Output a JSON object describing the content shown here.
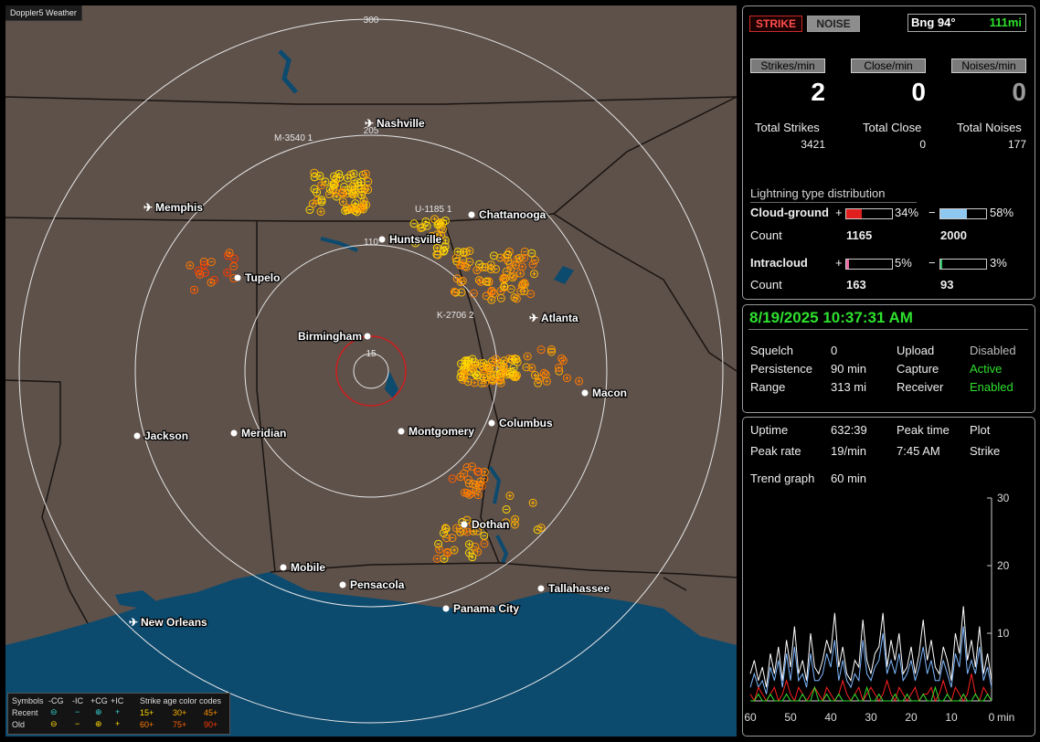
{
  "app_title": "Doppler5 Weather",
  "map": {
    "range_labels": [
      "300",
      "205",
      "110",
      "15"
    ],
    "cities": [
      {
        "name": "Nashville",
        "icon": "airport"
      },
      {
        "name": "Memphis",
        "icon": "airport"
      },
      {
        "name": "Chattanooga",
        "icon": "dot"
      },
      {
        "name": "Huntsville",
        "icon": "dot"
      },
      {
        "name": "Tupelo",
        "icon": "dot"
      },
      {
        "name": "Atlanta",
        "icon": "airport"
      },
      {
        "name": "Birmingham",
        "icon": "dot"
      },
      {
        "name": "Macon",
        "icon": "dot"
      },
      {
        "name": "Jackson",
        "icon": "dot"
      },
      {
        "name": "Meridian",
        "icon": "dot"
      },
      {
        "name": "Montgomery",
        "icon": "dot"
      },
      {
        "name": "Columbus",
        "icon": "dot"
      },
      {
        "name": "Dothan",
        "icon": "dot"
      },
      {
        "name": "Mobile",
        "icon": "dot"
      },
      {
        "name": "Pensacola",
        "icon": "dot"
      },
      {
        "name": "Tallahassee",
        "icon": "dot"
      },
      {
        "name": "Panama City",
        "icon": "dot"
      },
      {
        "name": "New Orleans",
        "icon": "airport"
      }
    ],
    "storm_tags": [
      "M-3540 1",
      "U-1185 1",
      "K-2706 2"
    ],
    "colors": {
      "land": "#5e514a",
      "water": "#0c4a6e",
      "ring": "#e6e6e6",
      "center_ring": "#d11b1b"
    }
  },
  "legend": {
    "symbols_label": "Symbols",
    "headers": [
      "-CG",
      "-IC",
      "+CG",
      "+IC"
    ],
    "age_title": "Strike age color codes",
    "rows": [
      {
        "label": "Recent",
        "ages": [
          "15+",
          "30+",
          "45+"
        ]
      },
      {
        "label": "Old",
        "ages": [
          "60+",
          "75+",
          "90+"
        ]
      }
    ],
    "age_colors": [
      "#ffd700",
      "#ffb000",
      "#ff9000",
      "#ff7a00",
      "#ff5e00",
      "#ff3a00"
    ]
  },
  "header": {
    "strike_btn": "STRIKE",
    "noise_btn": "NOISE",
    "bearing": "Bng 94°",
    "distance": "111mi"
  },
  "rates": {
    "strikes_label": "Strikes/min",
    "strikes": "2",
    "close_label": "Close/min",
    "close": "0",
    "noises_label": "Noises/min",
    "noises": "0"
  },
  "totals": {
    "strikes_label": "Total Strikes",
    "strikes": "3421",
    "close_label": "Total Close",
    "close": "0",
    "noises_label": "Total Noises",
    "noises": "177"
  },
  "distribution": {
    "title": "Lightning type distribution",
    "cg_label": "Cloud-ground",
    "ic_label": "Intracloud",
    "count_label": "Count",
    "plus": "+",
    "minus": "−",
    "cg_plus_pct": "34%",
    "cg_plus_fraction": 0.34,
    "cg_plus_count": "1165",
    "cg_minus_pct": "58%",
    "cg_minus_fraction": 0.58,
    "cg_minus_count": "2000",
    "ic_plus_pct": "5%",
    "ic_plus_fraction": 0.05,
    "ic_plus_count": "163",
    "ic_minus_pct": "3%",
    "ic_minus_fraction": 0.03,
    "ic_minus_count": "93",
    "colors": {
      "cg_plus": "#e0201e",
      "cg_minus": "#8ec8f0",
      "ic_plus": "#e86aa0",
      "ic_minus": "#2ebf6a"
    }
  },
  "status": {
    "datetime": "8/19/2025 10:37:31 AM",
    "squelch_label": "Squelch",
    "squelch": "0",
    "persistence_label": "Persistence",
    "persistence": "90 min",
    "range_label": "Range",
    "range": "313 mi",
    "upload_label": "Upload",
    "upload": "Disabled",
    "capture_label": "Capture",
    "capture": "Active",
    "receiver_label": "Receiver",
    "receiver": "Enabled"
  },
  "stats": {
    "uptime_label": "Uptime",
    "uptime": "632:39",
    "peak_time_label": "Peak time",
    "peak_time": "7:45 AM",
    "plot_label": "Plot",
    "plot": "Strike",
    "peak_rate_label": "Peak rate",
    "peak_rate": "19/min",
    "trend_label": "Trend graph",
    "trend": "60 min"
  },
  "chart_data": {
    "type": "line",
    "xlabel": "min",
    "x_ticks": [
      60,
      50,
      40,
      30,
      20,
      10,
      0
    ],
    "y_ticks": [
      10,
      20,
      30
    ],
    "ylim": [
      0,
      30
    ],
    "xlim": [
      60,
      0
    ],
    "series": [
      {
        "color": "#ffffff",
        "values": [
          4,
          6,
          3,
          5,
          2,
          7,
          4,
          8,
          3,
          9,
          5,
          11,
          4,
          6,
          3,
          10,
          5,
          4,
          6,
          9,
          7,
          13,
          5,
          8,
          4,
          3,
          6,
          5,
          12,
          6,
          4,
          7,
          8,
          13,
          5,
          9,
          6,
          10,
          4,
          5,
          8,
          4,
          7,
          12,
          6,
          9,
          5,
          4,
          8,
          6,
          3,
          10,
          7,
          14,
          6,
          9,
          5,
          11,
          4,
          7,
          3
        ]
      },
      {
        "color": "#7fb8ff",
        "values": [
          2,
          4,
          2,
          3,
          1,
          5,
          3,
          6,
          2,
          7,
          3,
          8,
          3,
          4,
          2,
          7,
          3,
          3,
          4,
          7,
          5,
          9,
          3,
          6,
          3,
          2,
          4,
          3,
          9,
          4,
          3,
          5,
          6,
          10,
          4,
          6,
          4,
          7,
          3,
          4,
          6,
          3,
          5,
          8,
          4,
          6,
          3,
          3,
          6,
          4,
          2,
          7,
          5,
          11,
          4,
          6,
          4,
          8,
          3,
          5,
          2
        ]
      },
      {
        "color": "#ff2020",
        "values": [
          1,
          0,
          2,
          1,
          0,
          1,
          2,
          0,
          1,
          3,
          1,
          0,
          2,
          1,
          0,
          1,
          2,
          1,
          0,
          2,
          1,
          0,
          1,
          3,
          1,
          0,
          1,
          2,
          0,
          1,
          2,
          1,
          0,
          1,
          3,
          1,
          0,
          2,
          1,
          0,
          1,
          2,
          0,
          1,
          1,
          2,
          0,
          1,
          3,
          1,
          0,
          2,
          1,
          0,
          1,
          4,
          1,
          0,
          2,
          1,
          0
        ]
      },
      {
        "color": "#2ee02e",
        "values": [
          0,
          0,
          1,
          0,
          0,
          1,
          0,
          0,
          0,
          1,
          0,
          0,
          0,
          1,
          0,
          0,
          2,
          0,
          0,
          1,
          0,
          0,
          1,
          0,
          0,
          0,
          1,
          0,
          0,
          2,
          0,
          0,
          1,
          0,
          0,
          0,
          1,
          0,
          0,
          1,
          0,
          0,
          0,
          1,
          0,
          0,
          2,
          0,
          0,
          1,
          0,
          0,
          0,
          1,
          0,
          0,
          1,
          0,
          0,
          1,
          0
        ]
      }
    ]
  }
}
